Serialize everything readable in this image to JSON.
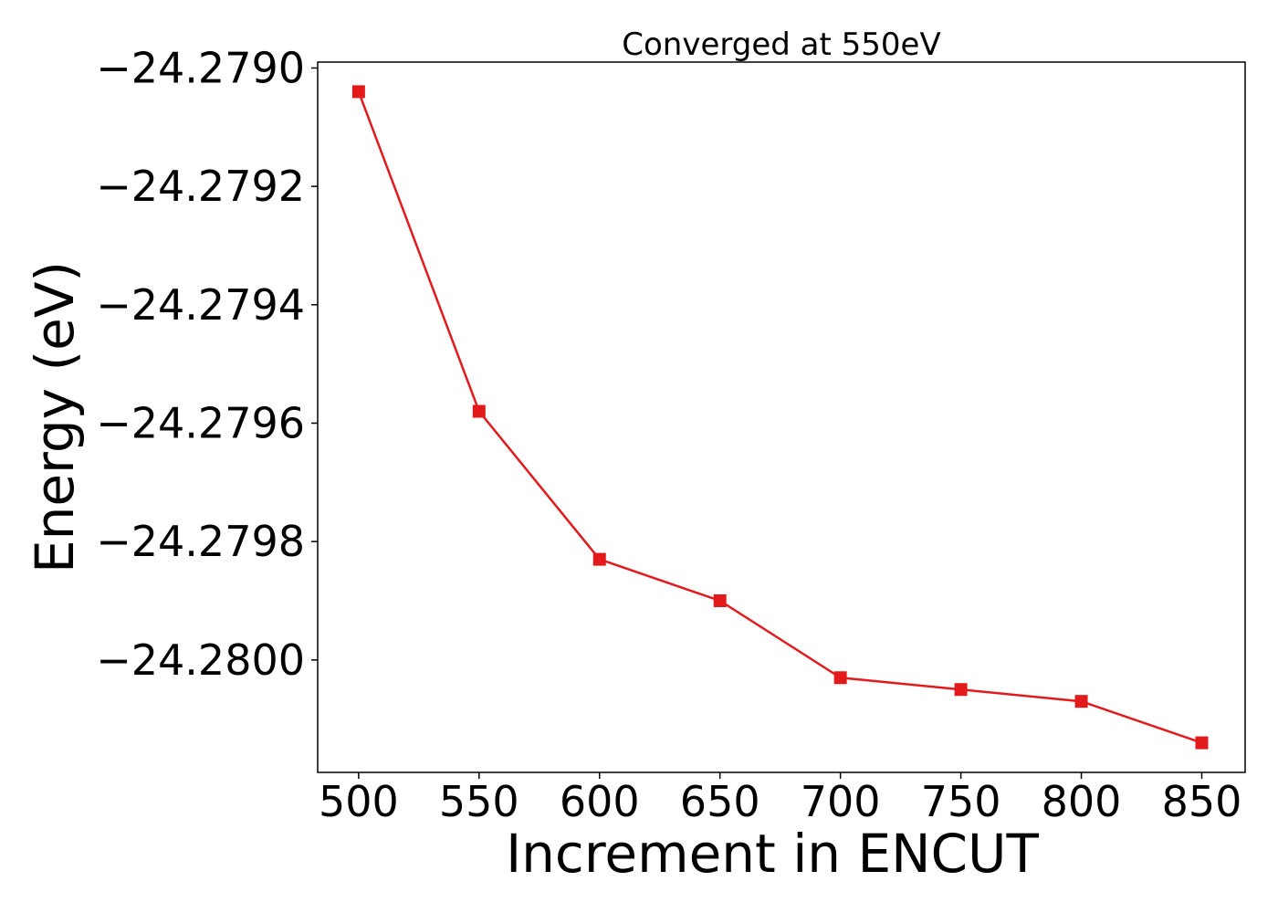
{
  "chart_data": {
    "type": "line",
    "title": "Converged at 550eV",
    "xlabel": "Increment in ENCUT",
    "ylabel": "Energy (eV)",
    "x": [
      500,
      550,
      600,
      650,
      700,
      750,
      800,
      850
    ],
    "series": [
      {
        "values": [
          -24.27904,
          -24.27958,
          -24.27983,
          -24.2799,
          -24.28003,
          -24.28005,
          -24.28007,
          -24.28014
        ],
        "color": "#e31a1c",
        "marker": "square"
      }
    ],
    "xlim": [
      483,
      868
    ],
    "ylim": [
      -24.28019,
      -24.27899
    ],
    "xticks": [
      500,
      550,
      600,
      650,
      700,
      750,
      800,
      850
    ],
    "xtick_labels": [
      "500",
      "550",
      "600",
      "650",
      "700",
      "750",
      "800",
      "850"
    ],
    "yticks": [
      -24.279,
      -24.2792,
      -24.2794,
      -24.2796,
      -24.2798,
      -24.28
    ],
    "ytick_labels": [
      "−24.2790",
      "−24.2792",
      "−24.2794",
      "−24.2796",
      "−24.2798",
      "−24.2800"
    ],
    "grid": false,
    "legend": "none"
  }
}
